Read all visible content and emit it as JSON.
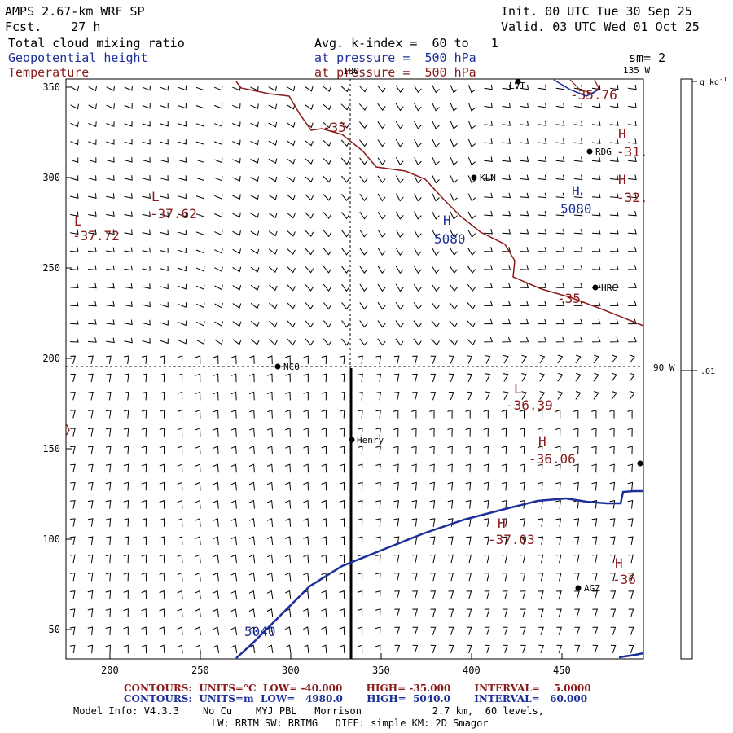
{
  "header": {
    "model": "AMPS 2.67-km WRF SP",
    "forecast": "Fcst.    27 h",
    "init": "Init. 00 UTC Tue 30 Sep 25",
    "valid": "Valid. 03 UTC Wed 01 Oct 25",
    "field1": "Total cloud mixing ratio",
    "field2": "Geopotential height",
    "field3": "Temperature",
    "avg": "Avg. k-index =  60 to   1",
    "pressure_line1": "at pressure =  500 hPa",
    "pressure_line2": "at pressure =  500 hPa",
    "sm": "sm= 2"
  },
  "map": {
    "lon_top": "180",
    "lon_135": "135 W",
    "lon_90": "90 W",
    "x_ticks": [
      "200",
      "250",
      "300",
      "350",
      "400",
      "450"
    ],
    "y_ticks": [
      "350",
      "300",
      "250",
      "200",
      "150",
      "100",
      "50"
    ],
    "stations": [
      "LVT",
      "RDG",
      "KLN",
      "HRC",
      "NCO",
      "Henry",
      "AGZ"
    ],
    "labels": {
      "L1_letter": "L",
      "L1_val": "-37.62",
      "L2_letter": "L",
      "L2_val": "-37.72",
      "H1_letter": "H",
      "H1_val": "5080",
      "H2_letter": "H",
      "H2_val": "5080",
      "H3_letter": "H",
      "H3_val": "-31.",
      "H4_letter": "H",
      "H4_val": "-32.",
      "L3_letter": "L",
      "L3_val": "-36.39",
      "H5_letter": "H",
      "H5_val": "-36.06",
      "H6_letter": "H",
      "H6_val": "-37.03",
      "H7_letter": "H",
      "H7_val": "-36",
      "t35a": "-35",
      "t35b": "-35",
      "t35c": "-35.76",
      "z5040": "5040"
    },
    "colors": {
      "temperature": "#8b1a1a",
      "height": "#1c2f9a",
      "barb": "#000000",
      "cross_section": "#000000"
    }
  },
  "colorbar": {
    "unit": "g kg",
    "unit_sup": "-1",
    "value": ".01"
  },
  "footer": {
    "temp_line": "CONTOURS:  UNITS=°C  LOW= -40.000       HIGH= -35.000       INTERVAL=    5.0000",
    "height_line": "CONTOURS:  UNITS=m  LOW=   4980.0       HIGH=  5040.0       INTERVAL=   60.000",
    "info1": "Model Info: V4.3.3    No Cu    MYJ PBL   Morrison            2.7 km,  60 levels,",
    "info2": "LW: RRTM SW: RRTMG   DIFF: simple KM: 2D Smagor"
  }
}
